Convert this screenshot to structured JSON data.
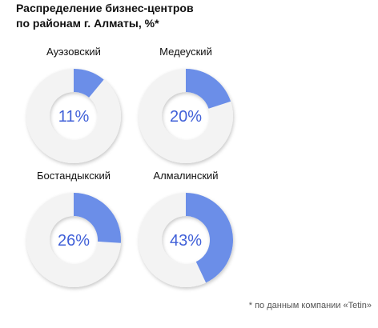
{
  "title": [
    "Распределение бизнес-центров",
    "по районам г. Алматы, %*"
  ],
  "footnote": "* по данным компании «Tetin»",
  "colors": {
    "accent": "#6b8ee8",
    "track": "#f3f3f3",
    "percent_text": "#4060d8",
    "label_text": "#111111"
  },
  "chart_data": {
    "type": "pie",
    "title": "Распределение бизнес-центров по районам г. Алматы, %*",
    "unit": "%",
    "districts": [
      {
        "name": "Ауэзовский",
        "value": 11,
        "label": "11%"
      },
      {
        "name": "Медеуский",
        "value": 20,
        "label": "20%"
      },
      {
        "name": "Бостандыкский",
        "value": 26,
        "label": "26%"
      },
      {
        "name": "Алмалинский",
        "value": 43,
        "label": "43%"
      }
    ]
  }
}
